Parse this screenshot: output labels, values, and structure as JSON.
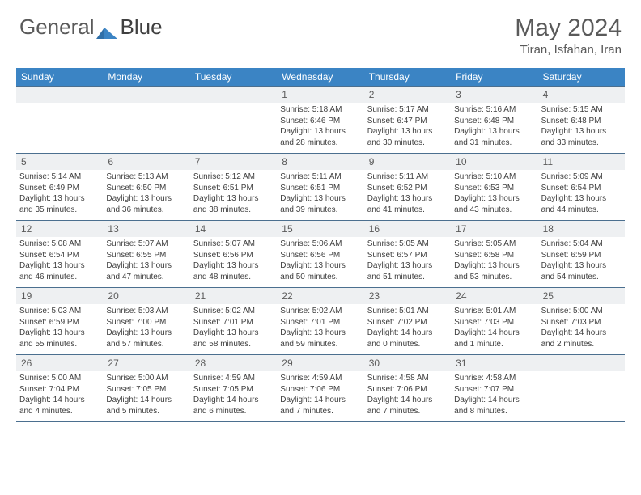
{
  "logo": {
    "text1": "General",
    "text2": "Blue"
  },
  "title": "May 2024",
  "location": "Tiran, Isfahan, Iran",
  "weekdays": [
    "Sunday",
    "Monday",
    "Tuesday",
    "Wednesday",
    "Thursday",
    "Friday",
    "Saturday"
  ],
  "header_bg": "#3b84c4",
  "daynum_bg": "#eef0f2",
  "border_color": "#4b6f8f",
  "weeks": [
    [
      {
        "n": "",
        "sr": "",
        "ss": "",
        "dl": ""
      },
      {
        "n": "",
        "sr": "",
        "ss": "",
        "dl": ""
      },
      {
        "n": "",
        "sr": "",
        "ss": "",
        "dl": ""
      },
      {
        "n": "1",
        "sr": "Sunrise: 5:18 AM",
        "ss": "Sunset: 6:46 PM",
        "dl": "Daylight: 13 hours and 28 minutes."
      },
      {
        "n": "2",
        "sr": "Sunrise: 5:17 AM",
        "ss": "Sunset: 6:47 PM",
        "dl": "Daylight: 13 hours and 30 minutes."
      },
      {
        "n": "3",
        "sr": "Sunrise: 5:16 AM",
        "ss": "Sunset: 6:48 PM",
        "dl": "Daylight: 13 hours and 31 minutes."
      },
      {
        "n": "4",
        "sr": "Sunrise: 5:15 AM",
        "ss": "Sunset: 6:48 PM",
        "dl": "Daylight: 13 hours and 33 minutes."
      }
    ],
    [
      {
        "n": "5",
        "sr": "Sunrise: 5:14 AM",
        "ss": "Sunset: 6:49 PM",
        "dl": "Daylight: 13 hours and 35 minutes."
      },
      {
        "n": "6",
        "sr": "Sunrise: 5:13 AM",
        "ss": "Sunset: 6:50 PM",
        "dl": "Daylight: 13 hours and 36 minutes."
      },
      {
        "n": "7",
        "sr": "Sunrise: 5:12 AM",
        "ss": "Sunset: 6:51 PM",
        "dl": "Daylight: 13 hours and 38 minutes."
      },
      {
        "n": "8",
        "sr": "Sunrise: 5:11 AM",
        "ss": "Sunset: 6:51 PM",
        "dl": "Daylight: 13 hours and 39 minutes."
      },
      {
        "n": "9",
        "sr": "Sunrise: 5:11 AM",
        "ss": "Sunset: 6:52 PM",
        "dl": "Daylight: 13 hours and 41 minutes."
      },
      {
        "n": "10",
        "sr": "Sunrise: 5:10 AM",
        "ss": "Sunset: 6:53 PM",
        "dl": "Daylight: 13 hours and 43 minutes."
      },
      {
        "n": "11",
        "sr": "Sunrise: 5:09 AM",
        "ss": "Sunset: 6:54 PM",
        "dl": "Daylight: 13 hours and 44 minutes."
      }
    ],
    [
      {
        "n": "12",
        "sr": "Sunrise: 5:08 AM",
        "ss": "Sunset: 6:54 PM",
        "dl": "Daylight: 13 hours and 46 minutes."
      },
      {
        "n": "13",
        "sr": "Sunrise: 5:07 AM",
        "ss": "Sunset: 6:55 PM",
        "dl": "Daylight: 13 hours and 47 minutes."
      },
      {
        "n": "14",
        "sr": "Sunrise: 5:07 AM",
        "ss": "Sunset: 6:56 PM",
        "dl": "Daylight: 13 hours and 48 minutes."
      },
      {
        "n": "15",
        "sr": "Sunrise: 5:06 AM",
        "ss": "Sunset: 6:56 PM",
        "dl": "Daylight: 13 hours and 50 minutes."
      },
      {
        "n": "16",
        "sr": "Sunrise: 5:05 AM",
        "ss": "Sunset: 6:57 PM",
        "dl": "Daylight: 13 hours and 51 minutes."
      },
      {
        "n": "17",
        "sr": "Sunrise: 5:05 AM",
        "ss": "Sunset: 6:58 PM",
        "dl": "Daylight: 13 hours and 53 minutes."
      },
      {
        "n": "18",
        "sr": "Sunrise: 5:04 AM",
        "ss": "Sunset: 6:59 PM",
        "dl": "Daylight: 13 hours and 54 minutes."
      }
    ],
    [
      {
        "n": "19",
        "sr": "Sunrise: 5:03 AM",
        "ss": "Sunset: 6:59 PM",
        "dl": "Daylight: 13 hours and 55 minutes."
      },
      {
        "n": "20",
        "sr": "Sunrise: 5:03 AM",
        "ss": "Sunset: 7:00 PM",
        "dl": "Daylight: 13 hours and 57 minutes."
      },
      {
        "n": "21",
        "sr": "Sunrise: 5:02 AM",
        "ss": "Sunset: 7:01 PM",
        "dl": "Daylight: 13 hours and 58 minutes."
      },
      {
        "n": "22",
        "sr": "Sunrise: 5:02 AM",
        "ss": "Sunset: 7:01 PM",
        "dl": "Daylight: 13 hours and 59 minutes."
      },
      {
        "n": "23",
        "sr": "Sunrise: 5:01 AM",
        "ss": "Sunset: 7:02 PM",
        "dl": "Daylight: 14 hours and 0 minutes."
      },
      {
        "n": "24",
        "sr": "Sunrise: 5:01 AM",
        "ss": "Sunset: 7:03 PM",
        "dl": "Daylight: 14 hours and 1 minute."
      },
      {
        "n": "25",
        "sr": "Sunrise: 5:00 AM",
        "ss": "Sunset: 7:03 PM",
        "dl": "Daylight: 14 hours and 2 minutes."
      }
    ],
    [
      {
        "n": "26",
        "sr": "Sunrise: 5:00 AM",
        "ss": "Sunset: 7:04 PM",
        "dl": "Daylight: 14 hours and 4 minutes."
      },
      {
        "n": "27",
        "sr": "Sunrise: 5:00 AM",
        "ss": "Sunset: 7:05 PM",
        "dl": "Daylight: 14 hours and 5 minutes."
      },
      {
        "n": "28",
        "sr": "Sunrise: 4:59 AM",
        "ss": "Sunset: 7:05 PM",
        "dl": "Daylight: 14 hours and 6 minutes."
      },
      {
        "n": "29",
        "sr": "Sunrise: 4:59 AM",
        "ss": "Sunset: 7:06 PM",
        "dl": "Daylight: 14 hours and 7 minutes."
      },
      {
        "n": "30",
        "sr": "Sunrise: 4:58 AM",
        "ss": "Sunset: 7:06 PM",
        "dl": "Daylight: 14 hours and 7 minutes."
      },
      {
        "n": "31",
        "sr": "Sunrise: 4:58 AM",
        "ss": "Sunset: 7:07 PM",
        "dl": "Daylight: 14 hours and 8 minutes."
      },
      {
        "n": "",
        "sr": "",
        "ss": "",
        "dl": ""
      }
    ]
  ]
}
